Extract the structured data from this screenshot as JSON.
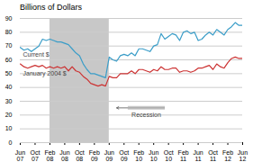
{
  "chart_data": {
    "type": "line",
    "title": "Billions of Dollars",
    "categories": [
      "Jun\n07",
      null,
      null,
      null,
      "Oct\n07",
      null,
      null,
      null,
      "Feb\n08",
      null,
      null,
      null,
      "Jun\n08",
      null,
      null,
      null,
      "Oct\n08",
      null,
      null,
      null,
      "Feb\n09",
      null,
      null,
      null,
      "Jun\n09",
      null,
      null,
      null,
      "Oct\n09",
      null,
      null,
      null,
      "Feb\n10",
      null,
      null,
      null,
      "Jun\n10",
      null,
      null,
      null,
      "Oct\n10",
      null,
      null,
      null,
      "Feb\n11",
      null,
      null,
      null,
      "Jun\n11",
      null,
      null,
      null,
      "Oct\n11",
      null,
      null,
      null,
      "Feb\n12",
      null,
      null,
      null,
      "Jun\n12"
    ],
    "series": [
      {
        "name": "Current $",
        "color": "#3a9dc8",
        "values": [
          69,
          67,
          68,
          66,
          68,
          70,
          75,
          74,
          75,
          74,
          73,
          73,
          72,
          71,
          68,
          65,
          63,
          57,
          53,
          50,
          50,
          49,
          48,
          47,
          62,
          60,
          59,
          63,
          64,
          63,
          65,
          63,
          68,
          68,
          67,
          66,
          70,
          71,
          79,
          75,
          77,
          79,
          78,
          74,
          80,
          81,
          79,
          80,
          74,
          75,
          78,
          80,
          78,
          82,
          80,
          78,
          82,
          84,
          87,
          85,
          85
        ]
      },
      {
        "name": "January 2004 $",
        "color": "#cc3333",
        "values": [
          57,
          55,
          54,
          55,
          56,
          55,
          56,
          54,
          55,
          54,
          55,
          54,
          55,
          52,
          55,
          52,
          51,
          48,
          46,
          43,
          42,
          41,
          42,
          41,
          48,
          47,
          47,
          50,
          50,
          50,
          52,
          50,
          53,
          53,
          52,
          51,
          53,
          52,
          55,
          53,
          53,
          54,
          54,
          51,
          52,
          52,
          51,
          52,
          54,
          54,
          55,
          56,
          53,
          57,
          55,
          54,
          58,
          61,
          62,
          61,
          61
        ]
      }
    ],
    "recession": {
      "label": "Recession",
      "start": "Feb\n08",
      "end": "Jun\n09",
      "color": "#c8c8c8"
    },
    "ylim": [
      0,
      90
    ],
    "yticks": [
      0,
      10,
      20,
      30,
      40,
      50,
      60,
      70,
      80,
      90
    ],
    "grid": true
  }
}
